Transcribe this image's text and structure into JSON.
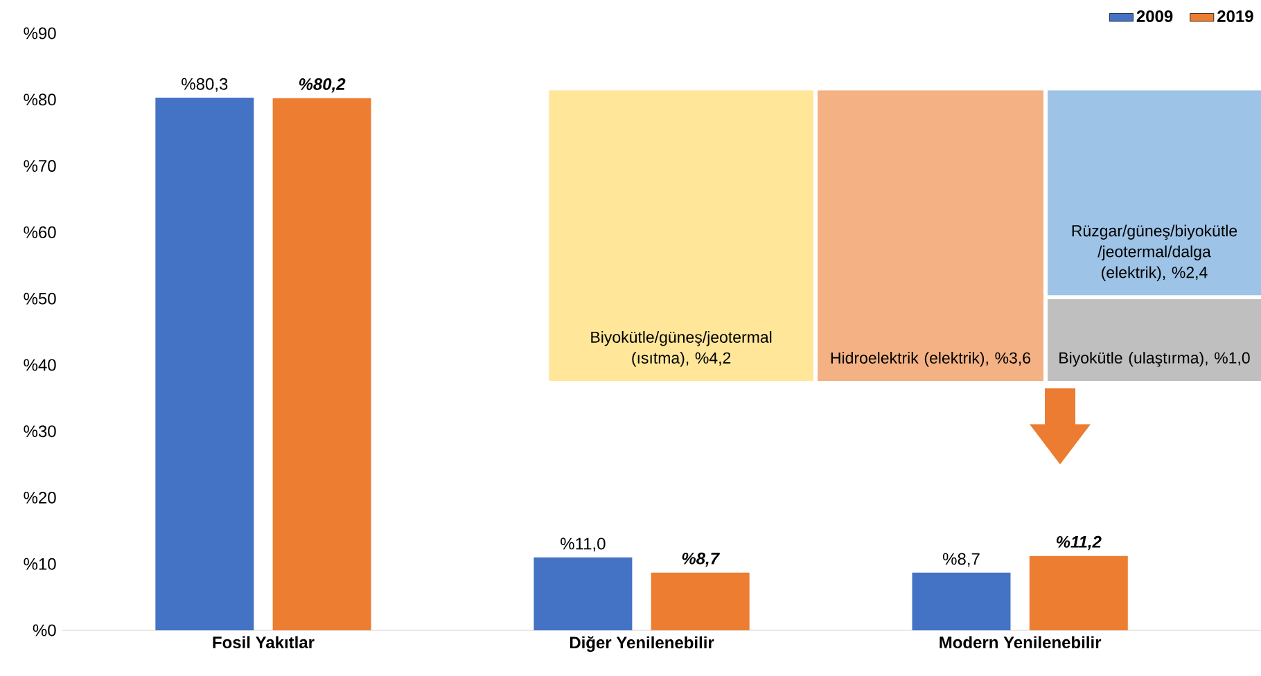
{
  "chart_data": {
    "type": "bar",
    "categories": [
      "Fosil Yakıtlar",
      "Diğer Yenilenebilir",
      "Modern Yenilenebilir"
    ],
    "series": [
      {
        "name": "2009",
        "color": "#4472c4",
        "values": [
          80.3,
          11.0,
          8.7
        ],
        "value_labels": [
          "%80,3",
          "%11,0",
          "%8,7"
        ]
      },
      {
        "name": "2019",
        "color": "#ed7d31",
        "values": [
          80.2,
          8.7,
          11.2
        ],
        "value_labels": [
          "%80,2",
          "%8,7",
          "%11,2"
        ]
      }
    ],
    "ylim": [
      0,
      90
    ],
    "yticks": [
      {
        "value": 0,
        "label": "%0"
      },
      {
        "value": 10,
        "label": "%10"
      },
      {
        "value": 20,
        "label": "%20"
      },
      {
        "value": 30,
        "label": "%30"
      },
      {
        "value": 40,
        "label": "%40"
      },
      {
        "value": 50,
        "label": "%50"
      },
      {
        "value": 60,
        "label": "%60"
      },
      {
        "value": 70,
        "label": "%70"
      },
      {
        "value": 80,
        "label": "%80"
      },
      {
        "value": 90,
        "label": "%90"
      }
    ],
    "grid": false,
    "legend": "top right",
    "annotations": [
      "Biyokütle/güneş/jeotermal (ısıtma), %4,2",
      "Hidroelektrik (elektrik), %3,6",
      "Rüzgar/güneş/biyokütle /jeotermal/dalga (elektrik), %2,4",
      "Biyokütle (ulaştırma), %1,0"
    ]
  }
}
